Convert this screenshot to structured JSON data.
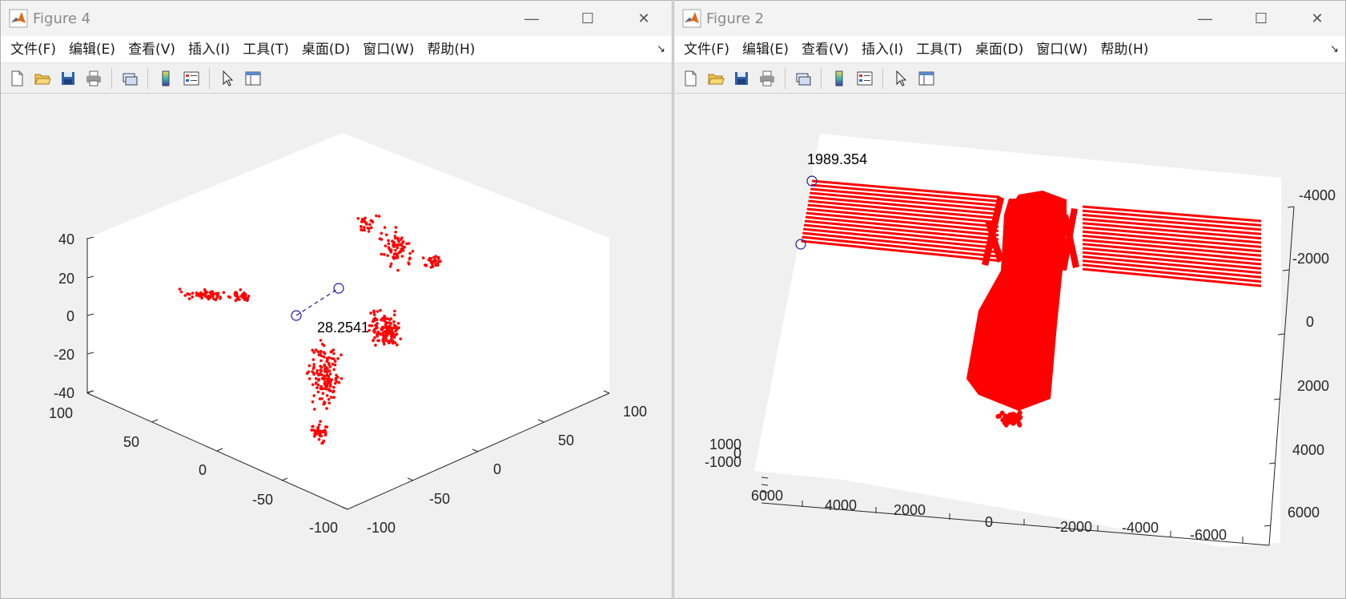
{
  "colors": {
    "points": "#ff0000",
    "tip_marker": "#1a1aa0",
    "axes_bg": "#ffffff",
    "figure_bg": "#f0f0f0"
  },
  "menu": [
    "文件(F)",
    "编辑(E)",
    "查看(V)",
    "插入(I)",
    "工具(T)",
    "桌面(D)",
    "窗口(W)",
    "帮助(H)"
  ],
  "toolbar_icons": [
    "new-figure-icon",
    "open-file-icon",
    "save-icon",
    "print-icon",
    "link-plot-icon",
    "colorbar-icon",
    "legend-icon",
    "edit-plot-icon",
    "property-inspector-icon"
  ],
  "window_controls": {
    "minimize": "—",
    "maximize": "☐",
    "close": "✕"
  },
  "left": {
    "title": "Figure 4",
    "chart_data": {
      "type": "scatter",
      "dims": 3,
      "ticks": {
        "z": [
          "40",
          "20",
          "0",
          "-20",
          "-40"
        ],
        "y": [
          "100",
          "50",
          "0",
          "-50",
          "-100"
        ],
        "x": [
          "-100",
          "-50",
          "0",
          "50",
          "100"
        ]
      },
      "zlim": [
        -40,
        40
      ],
      "ylim": [
        -100,
        100
      ],
      "xlim": [
        -100,
        100
      ],
      "datatip": {
        "label": "28.2541"
      }
    }
  },
  "right": {
    "title": "Figure 2",
    "chart_data": {
      "type": "scatter",
      "dims": 3,
      "ticks": {
        "right_axis": [
          "-4000",
          "-2000",
          "0",
          "2000",
          "4000",
          "6000"
        ],
        "bottom_axis": [
          "6000",
          "4000",
          "2000",
          "0",
          "-2000",
          "-4000",
          "-6000"
        ],
        "left_axis": [
          "1000",
          "0",
          "-1000"
        ]
      },
      "datatip": {
        "label": "1989.354"
      }
    }
  }
}
